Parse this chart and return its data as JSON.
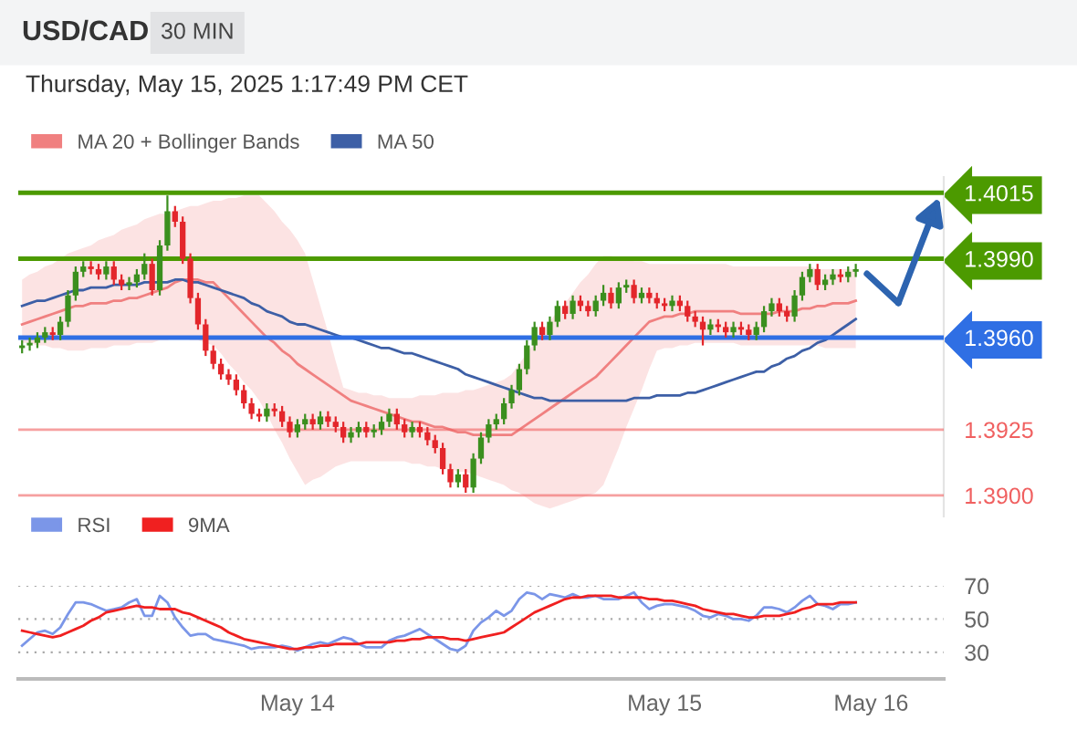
{
  "chart_data": [
    {
      "type": "candlestick",
      "title": "USD/CAD",
      "subtitle": "Thursday, May 15, 2025 1:17:49 PM CET",
      "annotations": [
        "30 MIN"
      ],
      "categories": [
        null,
        null,
        null,
        null,
        null,
        null,
        null,
        null,
        null,
        null,
        null,
        null,
        null,
        null,
        null,
        null,
        null,
        null,
        null,
        null,
        null,
        null,
        null,
        null,
        null,
        null,
        null,
        null,
        null,
        null,
        null,
        null,
        null,
        null,
        null,
        null,
        null,
        null,
        null,
        null,
        null,
        null,
        null,
        null,
        null,
        null,
        null,
        null,
        null,
        null,
        null,
        null,
        null,
        null,
        null,
        null,
        null,
        null,
        null,
        null,
        null,
        null,
        null,
        null,
        null,
        null,
        null,
        null,
        null,
        null,
        null,
        null,
        null,
        null,
        null,
        null,
        null,
        null,
        null,
        null,
        null,
        null,
        null,
        null,
        null,
        null,
        null,
        null,
        null,
        null,
        null,
        null,
        null,
        null,
        null,
        null,
        null,
        null,
        null,
        null,
        null,
        null,
        null,
        null,
        null,
        null,
        null,
        null,
        null,
        null,
        null,
        null,
        null,
        null,
        null,
        null,
        null,
        null,
        null,
        null,
        null
      ],
      "ohlc": [
        [
          1.3956,
          1.3959,
          1.3954,
          1.3957
        ],
        [
          1.3957,
          1.396,
          1.3955,
          1.3958
        ],
        [
          1.3958,
          1.3962,
          1.3956,
          1.396
        ],
        [
          1.396,
          1.3964,
          1.3958,
          1.3962
        ],
        [
          1.3962,
          1.3964,
          1.3959,
          1.3961
        ],
        [
          1.3961,
          1.3968,
          1.3959,
          1.3966
        ],
        [
          1.3966,
          1.3978,
          1.3964,
          1.3976
        ],
        [
          1.3976,
          1.3987,
          1.3974,
          1.3985
        ],
        [
          1.3985,
          1.3989,
          1.3983,
          1.3987
        ],
        [
          1.3987,
          1.3989,
          1.3984,
          1.3986
        ],
        [
          1.3986,
          1.3988,
          1.3982,
          1.3984
        ],
        [
          1.3984,
          1.3989,
          1.3982,
          1.3987
        ],
        [
          1.3987,
          1.3989,
          1.398,
          1.3982
        ],
        [
          1.3982,
          1.3984,
          1.3978,
          1.398
        ],
        [
          1.398,
          1.3983,
          1.3978,
          1.3981
        ],
        [
          1.3981,
          1.3986,
          1.3979,
          1.3984
        ],
        [
          1.3984,
          1.3992,
          1.3982,
          1.3988
        ],
        [
          1.3988,
          1.399,
          1.3976,
          1.3978
        ],
        [
          1.3978,
          1.3997,
          1.3976,
          1.3995
        ],
        [
          1.3995,
          1.4014,
          1.3993,
          1.4008
        ],
        [
          1.4008,
          1.401,
          1.4002,
          1.4004
        ],
        [
          1.4004,
          1.4006,
          1.3988,
          1.399
        ],
        [
          1.399,
          1.3992,
          1.3973,
          1.3975
        ],
        [
          1.3975,
          1.3977,
          1.3963,
          1.3965
        ],
        [
          1.3965,
          1.3967,
          1.3953,
          1.3955
        ],
        [
          1.3955,
          1.3957,
          1.3948,
          1.395
        ],
        [
          1.395,
          1.3952,
          1.3944,
          1.3946
        ],
        [
          1.3946,
          1.3948,
          1.3942,
          1.3944
        ],
        [
          1.3944,
          1.3946,
          1.3938,
          1.394
        ],
        [
          1.394,
          1.3942,
          1.3933,
          1.3935
        ],
        [
          1.3935,
          1.3937,
          1.3929,
          1.3931
        ],
        [
          1.3931,
          1.3933,
          1.3928,
          1.393
        ],
        [
          1.393,
          1.3935,
          1.3928,
          1.3933
        ],
        [
          1.3933,
          1.3935,
          1.393,
          1.3932
        ],
        [
          1.3932,
          1.3934,
          1.3926,
          1.3928
        ],
        [
          1.3928,
          1.393,
          1.3922,
          1.3924
        ],
        [
          1.3924,
          1.3929,
          1.3922,
          1.3927
        ],
        [
          1.3927,
          1.3931,
          1.3925,
          1.3929
        ],
        [
          1.3929,
          1.3931,
          1.3925,
          1.3927
        ],
        [
          1.3927,
          1.3932,
          1.3925,
          1.393
        ],
        [
          1.393,
          1.3932,
          1.3926,
          1.3928
        ],
        [
          1.3928,
          1.393,
          1.3924,
          1.3926
        ],
        [
          1.3926,
          1.3928,
          1.392,
          1.3922
        ],
        [
          1.3922,
          1.3926,
          1.392,
          1.3924
        ],
        [
          1.3924,
          1.3928,
          1.3922,
          1.3926
        ],
        [
          1.3926,
          1.3928,
          1.3922,
          1.3924
        ],
        [
          1.3924,
          1.3927,
          1.3922,
          1.3925
        ],
        [
          1.3925,
          1.393,
          1.3923,
          1.3928
        ],
        [
          1.3928,
          1.3933,
          1.3926,
          1.3931
        ],
        [
          1.3931,
          1.3933,
          1.3925,
          1.3927
        ],
        [
          1.3927,
          1.3929,
          1.3922,
          1.3924
        ],
        [
          1.3924,
          1.3928,
          1.3922,
          1.3926
        ],
        [
          1.3926,
          1.3928,
          1.3922,
          1.3924
        ],
        [
          1.3924,
          1.3926,
          1.3919,
          1.3921
        ],
        [
          1.3921,
          1.3923,
          1.3916,
          1.3918
        ],
        [
          1.3918,
          1.392,
          1.3908,
          1.391
        ],
        [
          1.391,
          1.3912,
          1.3903,
          1.3905
        ],
        [
          1.3905,
          1.391,
          1.3903,
          1.3908
        ],
        [
          1.3908,
          1.391,
          1.3901,
          1.3903
        ],
        [
          1.3903,
          1.3916,
          1.3901,
          1.3914
        ],
        [
          1.3914,
          1.3924,
          1.3912,
          1.3922
        ],
        [
          1.3922,
          1.3929,
          1.392,
          1.3927
        ],
        [
          1.3927,
          1.3931,
          1.3925,
          1.3929
        ],
        [
          1.3929,
          1.3937,
          1.3927,
          1.3935
        ],
        [
          1.3935,
          1.3942,
          1.3933,
          1.394
        ],
        [
          1.394,
          1.395,
          1.3938,
          1.3948
        ],
        [
          1.3948,
          1.3959,
          1.3946,
          1.3957
        ],
        [
          1.3957,
          1.3966,
          1.3955,
          1.3964
        ],
        [
          1.3964,
          1.3966,
          1.3959,
          1.3961
        ],
        [
          1.3961,
          1.3968,
          1.3959,
          1.3966
        ],
        [
          1.3966,
          1.3974,
          1.3964,
          1.3972
        ],
        [
          1.3972,
          1.3974,
          1.3967,
          1.3969
        ],
        [
          1.3969,
          1.3976,
          1.3967,
          1.3974
        ],
        [
          1.3974,
          1.3976,
          1.397,
          1.3972
        ],
        [
          1.3972,
          1.3974,
          1.3968,
          1.397
        ],
        [
          1.397,
          1.3976,
          1.3968,
          1.3974
        ],
        [
          1.3974,
          1.398,
          1.3972,
          1.3977
        ],
        [
          1.3977,
          1.3979,
          1.3971,
          1.3973
        ],
        [
          1.3973,
          1.3981,
          1.3971,
          1.3979
        ],
        [
          1.3979,
          1.3982,
          1.3977,
          1.398
        ],
        [
          1.398,
          1.3982,
          1.3973,
          1.3975
        ],
        [
          1.3975,
          1.3979,
          1.3973,
          1.3977
        ],
        [
          1.3977,
          1.3979,
          1.3973,
          1.3975
        ],
        [
          1.3975,
          1.3977,
          1.3971,
          1.3973
        ],
        [
          1.3973,
          1.3975,
          1.397,
          1.3972
        ],
        [
          1.3972,
          1.3976,
          1.397,
          1.3974
        ],
        [
          1.3974,
          1.3976,
          1.397,
          1.3972
        ],
        [
          1.3972,
          1.3974,
          1.3966,
          1.3968
        ],
        [
          1.3968,
          1.397,
          1.3964,
          1.3966
        ],
        [
          1.3966,
          1.3968,
          1.3957,
          1.3963
        ],
        [
          1.3963,
          1.3967,
          1.3961,
          1.3965
        ],
        [
          1.3965,
          1.3967,
          1.3962,
          1.3964
        ],
        [
          1.3964,
          1.3966,
          1.396,
          1.3962
        ],
        [
          1.3962,
          1.3966,
          1.396,
          1.3964
        ],
        [
          1.3964,
          1.3966,
          1.3961,
          1.3963
        ],
        [
          1.3963,
          1.3965,
          1.3959,
          1.3961
        ],
        [
          1.3961,
          1.3966,
          1.3959,
          1.3964
        ],
        [
          1.3964,
          1.3972,
          1.3962,
          1.397
        ],
        [
          1.397,
          1.3975,
          1.3968,
          1.3973
        ],
        [
          1.3973,
          1.3975,
          1.3968,
          1.397
        ],
        [
          1.397,
          1.3972,
          1.3966,
          1.3968
        ],
        [
          1.3968,
          1.3978,
          1.3966,
          1.3976
        ],
        [
          1.3976,
          1.3985,
          1.3974,
          1.3983
        ],
        [
          1.3983,
          1.3988,
          1.3981,
          1.3986
        ],
        [
          1.3986,
          1.3988,
          1.3978,
          1.398
        ],
        [
          1.398,
          1.3984,
          1.3978,
          1.3982
        ],
        [
          1.3982,
          1.3986,
          1.398,
          1.3984
        ],
        [
          1.3984,
          1.3986,
          1.3981,
          1.3983
        ],
        [
          1.3983,
          1.3987,
          1.3981,
          1.3985
        ],
        [
          1.3985,
          1.3988,
          1.3983,
          1.3986
        ],
        null,
        null,
        null,
        null,
        null,
        null,
        null,
        null,
        null,
        null,
        null
      ],
      "colors": [
        "#3b8f1e",
        "#3b8f1e",
        "#3b8f1e",
        "#3b8f1e",
        "#e3262b",
        "#3b8f1e",
        "#3b8f1e",
        "#3b8f1e",
        "#3b8f1e",
        "#e3262b",
        "#e3262b",
        "#3b8f1e",
        "#e3262b",
        "#e3262b",
        "#3b8f1e",
        "#3b8f1e",
        "#3b8f1e",
        "#e3262b",
        "#3b8f1e",
        "#3b8f1e",
        "#e3262b",
        "#e3262b",
        "#e3262b",
        "#e3262b",
        "#e3262b",
        "#e3262b",
        "#e3262b",
        "#e3262b",
        "#e3262b",
        "#e3262b",
        "#e3262b",
        "#e3262b",
        "#3b8f1e",
        "#e3262b",
        "#e3262b",
        "#e3262b",
        "#3b8f1e",
        "#3b8f1e",
        "#e3262b",
        "#3b8f1e",
        "#e3262b",
        "#e3262b",
        "#e3262b",
        "#3b8f1e",
        "#3b8f1e",
        "#e3262b",
        "#3b8f1e",
        "#3b8f1e",
        "#3b8f1e",
        "#e3262b",
        "#e3262b",
        "#3b8f1e",
        "#e3262b",
        "#e3262b",
        "#e3262b",
        "#e3262b",
        "#e3262b",
        "#3b8f1e",
        "#e3262b",
        "#3b8f1e",
        "#3b8f1e",
        "#3b8f1e",
        "#3b8f1e",
        "#3b8f1e",
        "#3b8f1e",
        "#3b8f1e",
        "#3b8f1e",
        "#3b8f1e",
        "#e3262b",
        "#3b8f1e",
        "#3b8f1e",
        "#e3262b",
        "#3b8f1e",
        "#e3262b",
        "#e3262b",
        "#3b8f1e",
        "#3b8f1e",
        "#e3262b",
        "#3b8f1e",
        "#3b8f1e",
        "#e3262b",
        "#3b8f1e",
        "#e3262b",
        "#e3262b",
        "#e3262b",
        "#3b8f1e",
        "#e3262b",
        "#e3262b",
        "#e3262b",
        "#e3262b",
        "#3b8f1e",
        "#e3262b",
        "#e3262b",
        "#3b8f1e",
        "#e3262b",
        "#e3262b",
        "#3b8f1e",
        "#3b8f1e",
        "#3b8f1e",
        "#e3262b",
        "#e3262b",
        "#3b8f1e",
        "#3b8f1e",
        "#3b8f1e",
        "#e3262b",
        "#3b8f1e",
        "#3b8f1e",
        "#e3262b",
        "#3b8f1e",
        "#3b8f1e",
        null,
        null,
        null,
        null,
        null,
        null,
        null,
        null,
        null,
        null,
        null
      ],
      "series": [
        {
          "name": "MA 20 + Bollinger Bands",
          "type": "line",
          "color": "#f08080",
          "values": [
            1.3965,
            1.3966,
            1.3967,
            1.3968,
            1.3969,
            1.397,
            1.3971,
            1.3972,
            1.3972,
            1.3973,
            1.3973,
            1.3973,
            1.3974,
            1.3974,
            1.3975,
            1.3975,
            1.3976,
            1.3977,
            1.3978,
            1.3979,
            1.3981,
            1.3982,
            1.3982,
            1.3982,
            1.3981,
            1.3981,
            1.3978,
            1.3975,
            1.3972,
            1.3969,
            1.3966,
            1.3963,
            1.396,
            1.3958,
            1.3955,
            1.3953,
            1.395,
            1.3948,
            1.3946,
            1.3944,
            1.3942,
            1.394,
            1.3938,
            1.3936,
            1.3935,
            1.3934,
            1.3933,
            1.3932,
            1.3931,
            1.393,
            1.3929,
            1.3928,
            1.3928,
            1.3927,
            1.3926,
            1.3926,
            1.3925,
            1.3924,
            1.3924,
            1.3923,
            1.3923,
            1.3923,
            1.3923,
            1.3923,
            1.3923,
            1.3925,
            1.3927,
            1.3929,
            1.3931,
            1.3933,
            1.3935,
            1.3937,
            1.3939,
            1.3941,
            1.3943,
            1.3945,
            1.3948,
            1.3951,
            1.3954,
            1.3957,
            1.396,
            1.3963,
            1.3966,
            1.3967,
            1.3968,
            1.3968,
            1.3969,
            1.3969,
            1.397,
            1.397,
            1.397,
            1.397,
            1.397,
            1.397,
            1.3969,
            1.3969,
            1.3969,
            1.3969,
            1.3969,
            1.397,
            1.397,
            1.397,
            1.3971,
            1.3971,
            1.3972,
            1.3972,
            1.3973,
            1.3973,
            1.3973,
            1.3974,
            null,
            null,
            null,
            null,
            null,
            null,
            null,
            null,
            null,
            null,
            null
          ],
          "upper": [
            1.3982,
            1.3984,
            1.3985,
            1.3987,
            1.3988,
            1.399,
            1.3992,
            1.3993,
            1.3994,
            1.3995,
            1.3997,
            1.3998,
            1.3999,
            1.4001,
            1.4002,
            1.4003,
            1.4005,
            1.4006,
            1.4007,
            1.4007,
            1.4008,
            1.4009,
            1.401,
            1.401,
            1.4011,
            1.4012,
            1.4012,
            1.4013,
            1.4013,
            1.4014,
            1.4014,
            1.4014,
            1.4011,
            1.4008,
            1.4004,
            1.4001,
            1.3997,
            1.3992,
            1.3982,
            1.3972,
            1.3962,
            1.3951,
            1.3941,
            1.394,
            1.3939,
            1.3939,
            1.3938,
            1.3938,
            1.3937,
            1.3937,
            1.3937,
            1.3937,
            1.3938,
            1.3938,
            1.3938,
            1.3939,
            1.3939,
            1.3939,
            1.394,
            1.394,
            1.3941,
            1.3942,
            1.3943,
            1.3944,
            1.3946,
            1.395,
            1.3954,
            1.3958,
            1.3962,
            1.3966,
            1.397,
            1.3973,
            1.3977,
            1.3981,
            1.3984,
            1.3988,
            1.3991,
            1.3991,
            1.399,
            1.399,
            1.3989,
            1.3989,
            1.3988,
            1.3988,
            1.3988,
            1.3988,
            1.3988,
            1.3988,
            1.3988,
            1.3988,
            1.3988,
            1.3988,
            1.3988,
            1.3987,
            1.3987,
            1.3987,
            1.3987,
            1.3987,
            1.3987,
            1.3987,
            1.3987,
            1.3987,
            1.3987,
            1.3987,
            1.3986,
            1.3986,
            1.3986,
            1.3986,
            1.3986,
            1.3986,
            null,
            null,
            null,
            null,
            null,
            null,
            null,
            null,
            null,
            null,
            null
          ],
          "lower": [
            1.3958,
            1.3958,
            1.3957,
            1.3957,
            1.3956,
            1.3956,
            1.3955,
            1.3955,
            1.3955,
            1.3956,
            1.3956,
            1.3956,
            1.3957,
            1.3957,
            1.3957,
            1.3958,
            1.3958,
            1.3958,
            1.3959,
            1.3959,
            1.396,
            1.396,
            1.3959,
            1.3959,
            1.3958,
            1.3957,
            1.3954,
            1.395,
            1.3947,
            1.3943,
            1.394,
            1.3936,
            1.3931,
            1.3925,
            1.392,
            1.3914,
            1.3909,
            1.3904,
            1.3906,
            1.3907,
            1.3909,
            1.3911,
            1.3912,
            1.3913,
            1.3913,
            1.3913,
            1.3913,
            1.3913,
            1.3913,
            1.3913,
            1.3913,
            1.3912,
            1.3912,
            1.3911,
            1.3911,
            1.391,
            1.391,
            1.3909,
            1.3909,
            1.3908,
            1.3907,
            1.3906,
            1.3905,
            1.3904,
            1.3902,
            1.3901,
            1.3899,
            1.3897,
            1.3896,
            1.3895,
            1.3896,
            1.3897,
            1.3898,
            1.3899,
            1.39,
            1.3901,
            1.3904,
            1.3911,
            1.3918,
            1.3926,
            1.3933,
            1.394,
            1.3948,
            1.3955,
            1.3956,
            1.3956,
            1.3957,
            1.3957,
            1.3958,
            1.3958,
            1.3958,
            1.3958,
            1.3958,
            1.3958,
            1.3957,
            1.3957,
            1.3957,
            1.3957,
            1.3957,
            1.3957,
            1.3957,
            1.3957,
            1.3957,
            1.3957,
            1.3957,
            1.3956,
            1.3956,
            1.3956,
            1.3956,
            1.3956,
            null,
            null,
            null,
            null,
            null,
            null,
            null,
            null,
            null,
            null,
            null
          ]
        },
        {
          "name": "MA 50",
          "type": "line",
          "color": "#3d5fa6",
          "values": [
            1.3972,
            1.3973,
            1.3974,
            1.3974,
            1.3975,
            1.3976,
            1.3977,
            1.3978,
            1.3978,
            1.3979,
            1.3979,
            1.3979,
            1.398,
            1.398,
            1.398,
            1.398,
            1.3981,
            1.3981,
            1.3981,
            1.3981,
            1.3982,
            1.3982,
            1.3981,
            1.3981,
            1.398,
            1.3979,
            1.3978,
            1.3977,
            1.3976,
            1.3975,
            1.3973,
            1.3972,
            1.397,
            1.3969,
            1.3968,
            1.3966,
            1.3965,
            1.3965,
            1.3964,
            1.3963,
            1.3962,
            1.3961,
            1.396,
            1.396,
            1.3959,
            1.3958,
            1.3957,
            1.3956,
            1.3956,
            1.3955,
            1.3954,
            1.3954,
            1.3953,
            1.3952,
            1.3951,
            1.395,
            1.3949,
            1.3948,
            1.3946,
            1.3945,
            1.3944,
            1.3943,
            1.3942,
            1.3941,
            1.394,
            1.3939,
            1.3938,
            1.3937,
            1.3937,
            1.3936,
            1.3936,
            1.3936,
            1.3936,
            1.3936,
            1.3936,
            1.3936,
            1.3936,
            1.3936,
            1.3936,
            1.3936,
            1.3937,
            1.3937,
            1.3937,
            1.3938,
            1.3938,
            1.3938,
            1.3938,
            1.3939,
            1.3939,
            1.394,
            1.3941,
            1.3942,
            1.3943,
            1.3944,
            1.3945,
            1.3946,
            1.3947,
            1.3947,
            1.3949,
            1.395,
            1.3952,
            1.3953,
            1.3955,
            1.3956,
            1.3958,
            1.3959,
            1.3961,
            1.3963,
            1.3965,
            1.3967,
            null,
            null,
            null,
            null,
            null,
            null,
            null,
            null,
            null,
            null,
            null
          ]
        }
      ],
      "ref_lines": [
        {
          "axis": "y",
          "value": 1.4015,
          "color": "#4c9a00"
        },
        {
          "axis": "y",
          "value": 1.399,
          "color": "#4c9a00"
        },
        {
          "axis": "y",
          "value": 1.396,
          "color": "#2f6fe4"
        },
        {
          "axis": "y",
          "value": 1.3925,
          "color": "#f06060"
        },
        {
          "axis": "y",
          "value": 1.39,
          "color": "#f06060"
        }
      ],
      "ylim": [
        1.3892,
        1.4021
      ],
      "yticks": [
        {
          "value": 1.39,
          "label": "1.3900"
        },
        {
          "value": 1.3925,
          "label": "1.3925"
        },
        {
          "value": 1.396,
          "label": "1.3960"
        },
        {
          "value": 1.399,
          "label": "1.3990"
        },
        {
          "value": 1.4015,
          "label": "1.4015"
        }
      ],
      "tick_labels": "y",
      "legend": "top left"
    },
    {
      "type": "line",
      "categories": [
        null,
        null,
        null,
        null,
        null,
        null,
        null,
        null,
        null,
        null,
        null,
        null,
        null,
        null,
        null,
        null,
        null,
        null,
        null,
        null,
        null,
        null,
        null,
        null,
        null,
        null,
        null,
        null,
        null,
        null,
        null,
        null,
        null,
        null,
        null,
        null,
        "May 14",
        null,
        null,
        null,
        null,
        null,
        null,
        null,
        null,
        null,
        null,
        null,
        null,
        null,
        null,
        null,
        null,
        null,
        null,
        null,
        null,
        null,
        null,
        null,
        null,
        null,
        null,
        null,
        null,
        null,
        null,
        null,
        null,
        null,
        null,
        null,
        null,
        null,
        null,
        null,
        null,
        null,
        null,
        null,
        null,
        null,
        null,
        null,
        "May 15",
        null,
        null,
        null,
        null,
        null,
        null,
        null,
        null,
        null,
        null,
        null,
        null,
        null,
        null,
        null,
        null,
        null,
        null,
        null,
        null,
        null,
        null,
        null,
        null,
        null,
        null,
        "May 16",
        null,
        null,
        null,
        null,
        null,
        null,
        null,
        null,
        null
      ],
      "series": [
        {
          "name": "RSI",
          "color": "#7b96e8",
          "values": [
            34,
            38,
            42,
            43,
            41,
            45,
            53,
            60,
            60,
            59,
            57,
            55,
            56,
            57,
            60,
            62,
            52,
            52,
            64,
            60,
            51,
            45,
            40,
            41,
            41,
            38,
            37,
            36,
            35,
            34,
            32,
            33,
            33,
            33,
            34,
            33,
            31,
            33,
            35,
            36,
            35,
            37,
            39,
            38,
            35,
            33,
            33,
            33,
            37,
            39,
            40,
            42,
            44,
            41,
            38,
            35,
            32,
            31,
            34,
            43,
            48,
            51,
            55,
            52,
            55,
            62,
            66,
            65,
            62,
            65,
            64,
            63,
            65,
            63,
            63,
            64,
            62,
            62,
            62,
            64,
            66,
            60,
            56,
            58,
            59,
            59,
            58,
            57,
            55,
            52,
            51,
            53,
            52,
            50,
            50,
            49,
            52,
            57,
            57,
            56,
            54,
            57,
            61,
            64,
            59,
            58,
            56,
            59,
            59,
            60,
            null,
            null,
            null,
            null,
            null,
            null,
            null,
            null,
            null,
            null,
            null
          ]
        },
        {
          "name": "9MA",
          "color": "#f02020",
          "values": [
            43,
            42,
            41,
            40,
            39,
            40,
            42,
            44,
            46,
            49,
            51,
            54,
            55,
            56,
            57,
            58,
            57,
            57,
            56,
            56,
            56,
            54,
            53,
            51,
            49,
            47,
            45,
            42,
            40,
            38,
            37,
            36,
            35,
            34,
            33,
            32,
            32,
            33,
            33,
            34,
            34,
            35,
            35,
            35,
            35,
            36,
            36,
            36,
            36,
            37,
            37,
            38,
            38,
            39,
            39,
            39,
            38,
            38,
            37,
            38,
            39,
            40,
            41,
            42,
            45,
            48,
            51,
            54,
            56,
            58,
            60,
            62,
            63,
            63,
            64,
            64,
            64,
            64,
            63,
            63,
            63,
            63,
            62,
            62,
            61,
            61,
            60,
            59,
            58,
            56,
            55,
            54,
            53,
            53,
            52,
            51,
            51,
            52,
            52,
            52,
            53,
            54,
            56,
            57,
            59,
            59,
            59,
            60,
            60,
            60,
            null,
            null,
            null,
            null,
            null,
            null,
            null,
            null,
            null,
            null,
            null
          ]
        }
      ],
      "ylim": [
        14,
        70
      ],
      "yticks": [
        30,
        50,
        70
      ],
      "grid": "y",
      "legend": "top left"
    }
  ]
}
